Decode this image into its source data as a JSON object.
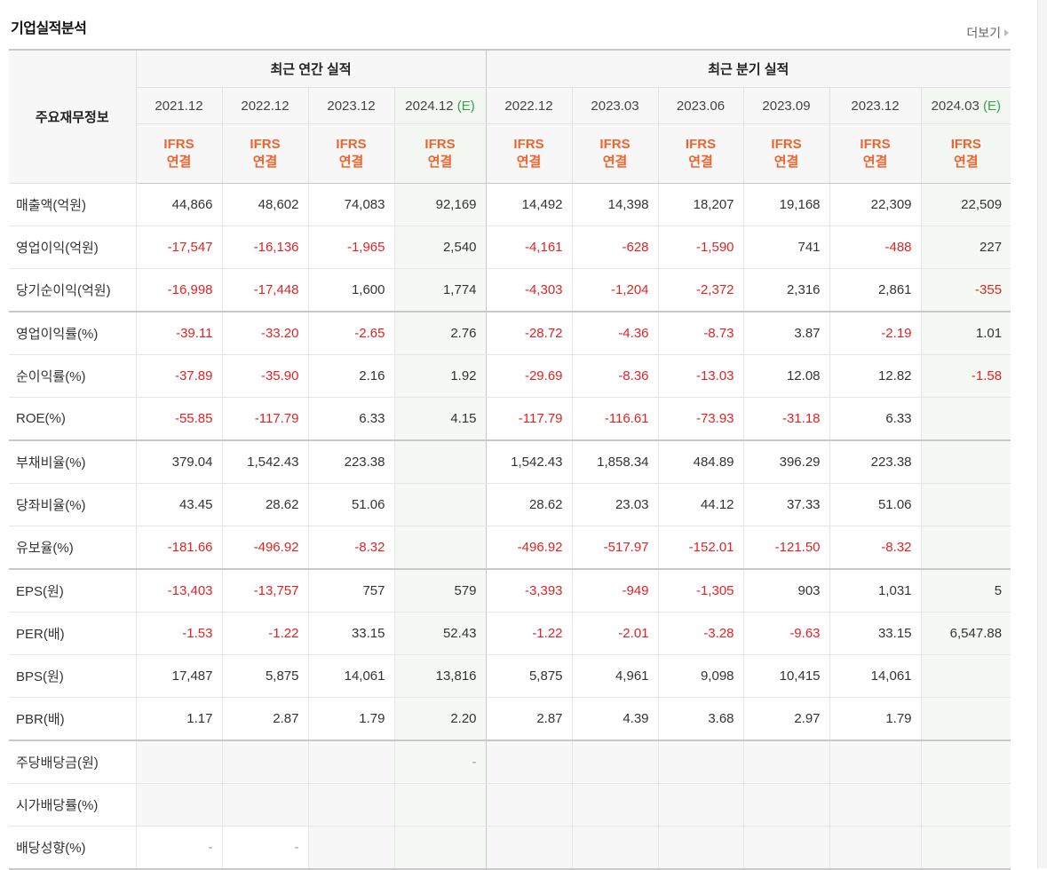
{
  "section": {
    "title": "기업실적분석",
    "more_label": "더보기"
  },
  "header": {
    "row_label": "주요재무정보",
    "annual_label": "최근 연간 실적",
    "quarter_label": "최근 분기 실적",
    "annual_periods": [
      "2021.12",
      "2022.12",
      "2023.12",
      "2024.12"
    ],
    "quarter_periods": [
      "2022.12",
      "2023.03",
      "2023.06",
      "2023.09",
      "2023.12",
      "2024.03"
    ],
    "estimate_mark": "(E)",
    "ifrs_line1": "IFRS",
    "ifrs_line2": "연결"
  },
  "rows": [
    {
      "label": "매출액(억원)",
      "values": [
        "44,866",
        "48,602",
        "74,083",
        "92,169",
        "14,492",
        "14,398",
        "18,207",
        "19,168",
        "22,309",
        "22,509"
      ]
    },
    {
      "label": "영업이익(억원)",
      "values": [
        "-17,547",
        "-16,136",
        "-1,965",
        "2,540",
        "-4,161",
        "-628",
        "-1,590",
        "741",
        "-488",
        "227"
      ]
    },
    {
      "label": "당기순이익(억원)",
      "values": [
        "-16,998",
        "-17,448",
        "1,600",
        "1,774",
        "-4,303",
        "-1,204",
        "-2,372",
        "2,316",
        "2,861",
        "-355"
      ]
    },
    {
      "label": "영업이익률(%)",
      "values": [
        "-39.11",
        "-33.20",
        "-2.65",
        "2.76",
        "-28.72",
        "-4.36",
        "-8.73",
        "3.87",
        "-2.19",
        "1.01"
      ]
    },
    {
      "label": "순이익률(%)",
      "values": [
        "-37.89",
        "-35.90",
        "2.16",
        "1.92",
        "-29.69",
        "-8.36",
        "-13.03",
        "12.08",
        "12.82",
        "-1.58"
      ]
    },
    {
      "label": "ROE(%)",
      "values": [
        "-55.85",
        "-117.79",
        "6.33",
        "4.15",
        "-117.79",
        "-116.61",
        "-73.93",
        "-31.18",
        "6.33",
        ""
      ]
    },
    {
      "label": "부채비율(%)",
      "values": [
        "379.04",
        "1,542.43",
        "223.38",
        "",
        "1,542.43",
        "1,858.34",
        "484.89",
        "396.29",
        "223.38",
        ""
      ]
    },
    {
      "label": "당좌비율(%)",
      "values": [
        "43.45",
        "28.62",
        "51.06",
        "",
        "28.62",
        "23.03",
        "44.12",
        "37.33",
        "51.06",
        ""
      ]
    },
    {
      "label": "유보율(%)",
      "values": [
        "-181.66",
        "-496.92",
        "-8.32",
        "",
        "-496.92",
        "-517.97",
        "-152.01",
        "-121.50",
        "-8.32",
        ""
      ]
    },
    {
      "label": "EPS(원)",
      "values": [
        "-13,403",
        "-13,757",
        "757",
        "579",
        "-3,393",
        "-949",
        "-1,305",
        "903",
        "1,031",
        "5"
      ]
    },
    {
      "label": "PER(배)",
      "values": [
        "-1.53",
        "-1.22",
        "33.15",
        "52.43",
        "-1.22",
        "-2.01",
        "-3.28",
        "-9.63",
        "33.15",
        "6,547.88"
      ]
    },
    {
      "label": "BPS(원)",
      "values": [
        "17,487",
        "5,875",
        "14,061",
        "13,816",
        "5,875",
        "4,961",
        "9,098",
        "10,415",
        "14,061",
        ""
      ]
    },
    {
      "label": "PBR(배)",
      "values": [
        "1.17",
        "2.87",
        "1.79",
        "2.20",
        "2.87",
        "4.39",
        "3.68",
        "2.97",
        "1.79",
        ""
      ]
    },
    {
      "label": "주당배당금(원)",
      "values": [
        "",
        "",
        "",
        "-",
        "",
        "",
        "",
        "",
        "",
        ""
      ]
    },
    {
      "label": "시가배당률(%)",
      "values": [
        "",
        "",
        "",
        "",
        "",
        "",
        "",
        "",
        "",
        ""
      ]
    },
    {
      "label": "배당성향(%)",
      "values": [
        "-",
        "-",
        "",
        "",
        "",
        "",
        "",
        "",
        "",
        ""
      ]
    }
  ],
  "colors": {
    "negative": "#e02424",
    "ifrs": "#f0632d",
    "estimate": "#3ba14a"
  }
}
